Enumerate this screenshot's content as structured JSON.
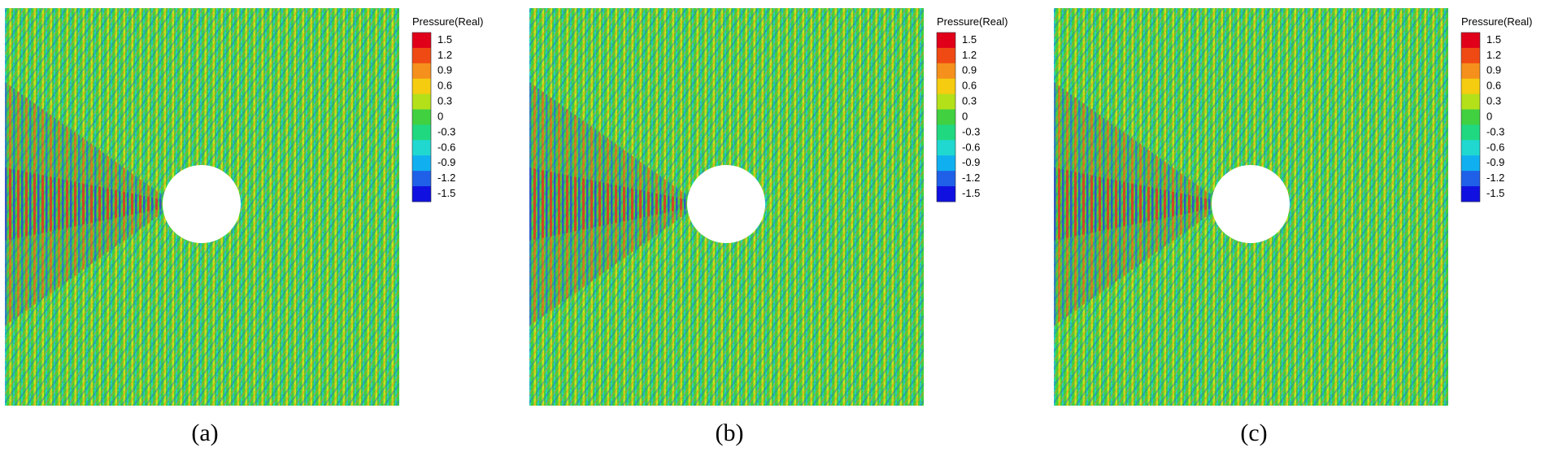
{
  "panels": [
    {
      "legend_title": "Pressure(Real)",
      "legend_labels": [
        "1.5",
        "1.2",
        "0.9",
        "0.6",
        "0.3",
        "0",
        "-0.3",
        "-0.6",
        "-0.9",
        "-1.2",
        "-1.5"
      ],
      "caption": "(a)"
    },
    {
      "legend_title": "Pressure(Real)",
      "legend_labels": [
        "1.5",
        "1.2",
        "0.9",
        "0.6",
        "0.3",
        "0",
        "-0.3",
        "-0.6",
        "-0.9",
        "-1.2",
        "-1.5"
      ],
      "caption": "(b)"
    },
    {
      "legend_title": "Pressure(Real)",
      "legend_labels": [
        "1.5",
        "1.2",
        "0.9",
        "0.6",
        "0.3",
        "0",
        "-0.3",
        "-0.6",
        "-0.9",
        "-1.2",
        "-1.5"
      ],
      "caption": "(c)"
    }
  ]
}
